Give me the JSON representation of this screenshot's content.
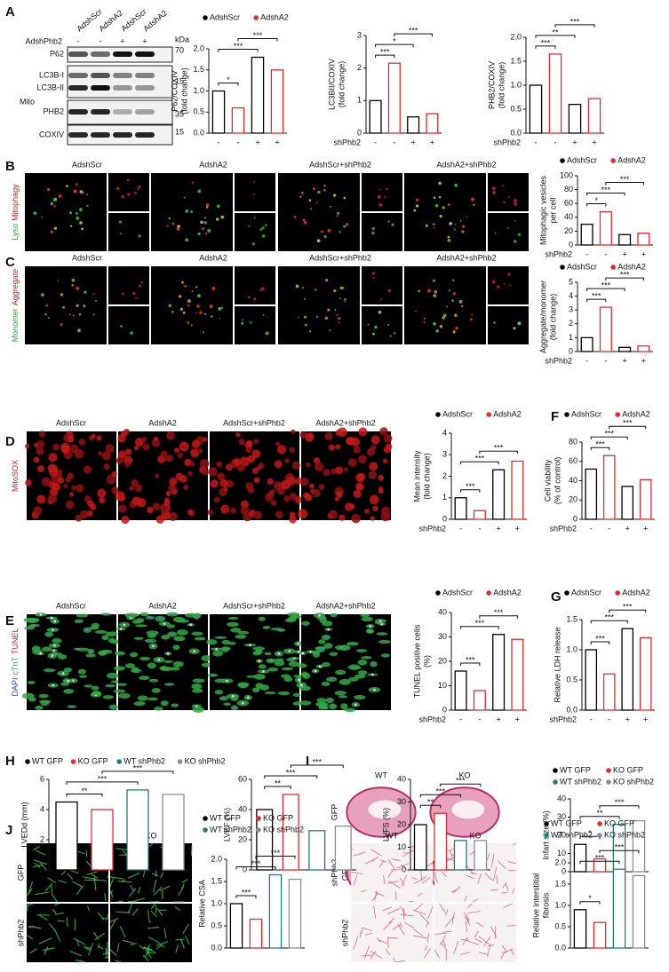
{
  "figure": {
    "letters": [
      "A",
      "B",
      "C",
      "D",
      "E",
      "F",
      "G",
      "H",
      "I",
      "J",
      "K"
    ],
    "blot": {
      "lanes": [
        "AdshScr",
        "AdshA2",
        "AdshScr",
        "AdshA2"
      ],
      "row": "AdshPhb2",
      "signs": [
        "-",
        "-",
        "+",
        "+"
      ],
      "unit": "kDa",
      "bands": [
        "P62",
        "LC3B-I",
        "LC3B-II",
        "PHB2",
        "COXIV"
      ],
      "fraction": "Mito",
      "markers": [
        70,
        15,
        35,
        15
      ]
    },
    "columns": [
      "AdshScr",
      "AdshA2",
      "AdshScr+shPhb2",
      "AdshA2+shPhb2"
    ],
    "B_channels": [
      "Lyso",
      "Mitophagy"
    ],
    "C_channels": [
      "Monomer",
      "Aggregate"
    ],
    "D_channels": [
      "MitoSOX"
    ],
    "E_channels": [
      "DAPI",
      "cTnT",
      "TUNEL"
    ],
    "tissue": {
      "columns": [
        "WT",
        "KO"
      ],
      "rows": [
        "GFP",
        "shPhb2"
      ]
    }
  },
  "chart_data": [
    {
      "type": "bar",
      "ylabel": [
        "P62/COXIV",
        "(fold change)"
      ],
      "categories": [
        "-",
        "-",
        "+",
        "+"
      ],
      "values": [
        1.0,
        0.6,
        1.8,
        1.5
      ],
      "legend": [
        {
          "name": "AdshScr",
          "color": "#000000"
        },
        {
          "name": "AdshA2",
          "color": "#e8282b"
        }
      ],
      "ylim": [
        0,
        2
      ],
      "yticks": [
        {
          "value": 0,
          "label": "0.0"
        },
        {
          "value": 0.5,
          "label": "0.5"
        },
        {
          "value": 1,
          "label": "1.0"
        },
        {
          "value": 1.5,
          "label": "1.5"
        },
        {
          "value": 2,
          "label": "2.0"
        }
      ],
      "annotations": [
        "*",
        "***",
        "***"
      ]
    },
    {
      "type": "bar",
      "ylabel": [
        "LC3BII/COXIV",
        "(fold change)"
      ],
      "xlabel": "shPhb2",
      "categories": [
        "-",
        "-",
        "+",
        "+"
      ],
      "values": [
        1.0,
        2.15,
        0.5,
        0.6
      ],
      "legend": [
        {
          "name": "AdshScr",
          "color": "#000000"
        },
        {
          "name": "AdshA2",
          "color": "#e8282b"
        }
      ],
      "ylim": [
        0,
        3
      ],
      "yticks": [
        0,
        1,
        2,
        3
      ],
      "annotations": [
        "***",
        "*",
        "***"
      ]
    },
    {
      "type": "bar",
      "ylabel": [
        "PHB2/COXIV",
        "(fold change)"
      ],
      "xlabel": "shPhb2",
      "categories": [
        "-",
        "-",
        "+",
        "+"
      ],
      "values": [
        1.0,
        1.65,
        0.6,
        0.72
      ],
      "legend": [
        {
          "name": "AdshScr",
          "color": "#000000"
        },
        {
          "name": "AdshA2",
          "color": "#e8282b"
        }
      ],
      "ylim": [
        0,
        2
      ],
      "yticks": [
        {
          "value": 0,
          "label": "0.0"
        },
        {
          "value": 0.5,
          "label": "0.5"
        },
        {
          "value": 1,
          "label": "1.0"
        },
        {
          "value": 1.5,
          "label": "1.5"
        },
        {
          "value": 2,
          "label": "2.0"
        }
      ],
      "annotations": [
        "***",
        "**",
        "***"
      ]
    },
    {
      "type": "bar",
      "ylabel": [
        "Mitophagic vesicles",
        "per cell"
      ],
      "xlabel": "shPhb2",
      "categories": [
        "-",
        "-",
        "+",
        "+"
      ],
      "values": [
        30,
        48,
        15,
        17
      ],
      "legend": [
        {
          "name": "AdshScr",
          "color": "#000000"
        },
        {
          "name": "AdshA2",
          "color": "#e8282b"
        }
      ],
      "ylim": [
        0,
        100
      ],
      "yticks": [
        0,
        20,
        40,
        60,
        80,
        100
      ],
      "annotations": [
        "*",
        "***",
        "***"
      ]
    },
    {
      "type": "bar",
      "ylabel": [
        "Aggregate/monomer",
        "(fold change)"
      ],
      "xlabel": "shPhb2",
      "categories": [
        "-",
        "-",
        "+",
        "+"
      ],
      "values": [
        1.0,
        3.2,
        0.3,
        0.4
      ],
      "legend": [
        {
          "name": "AdshScr",
          "color": "#000000"
        },
        {
          "name": "AdshA2",
          "color": "#e8282b"
        }
      ],
      "ylim": [
        0,
        5
      ],
      "yticks": [
        0,
        1,
        2,
        3,
        4,
        5
      ],
      "annotations": [
        "***",
        "***",
        "***"
      ]
    },
    {
      "type": "bar",
      "ylabel": [
        "Mean intensity",
        "(fold change)"
      ],
      "xlabel": "shPhb2",
      "categories": [
        "-",
        "-",
        "+",
        "+"
      ],
      "values": [
        1.0,
        0.4,
        2.3,
        2.7
      ],
      "legend": [
        {
          "name": "AdshScr",
          "color": "#000000"
        },
        {
          "name": "AdshA2",
          "color": "#e8282b"
        }
      ],
      "ylim": [
        0,
        4
      ],
      "yticks": [
        0,
        1,
        2,
        3,
        4
      ],
      "annotations": [
        "***",
        "***",
        "***"
      ]
    },
    {
      "type": "bar",
      "ylabel": [
        "Cell viability",
        "(% of control)"
      ],
      "xlabel": "shPhb2",
      "categories": [
        "-",
        "-",
        "+",
        "+"
      ],
      "values": [
        52,
        66,
        34,
        41
      ],
      "legend": [
        {
          "name": "AdshScr",
          "color": "#000000"
        },
        {
          "name": "AdshA2",
          "color": "#e8282b"
        }
      ],
      "ylim": [
        0,
        80
      ],
      "yticks": [
        0,
        20,
        40,
        60,
        80
      ],
      "annotations": [
        "***",
        "***",
        "***"
      ]
    },
    {
      "type": "bar",
      "ylabel": [
        "TUNEL positive cells",
        "(%)"
      ],
      "xlabel": "shPhb2",
      "categories": [
        "-",
        "-",
        "+",
        "+"
      ],
      "values": [
        16,
        8,
        31,
        29
      ],
      "legend": [
        {
          "name": "AdshScr",
          "color": "#000000"
        },
        {
          "name": "AdshA2",
          "color": "#e8282b"
        }
      ],
      "ylim": [
        0,
        40
      ],
      "yticks": [
        0,
        10,
        20,
        30,
        40
      ],
      "annotations": [
        "***",
        "***",
        "***"
      ]
    },
    {
      "type": "bar",
      "ylabel": [
        "Relative LDH release"
      ],
      "xlabel": "shPhb2",
      "categories": [
        "-",
        "-",
        "+",
        "+"
      ],
      "values": [
        1.0,
        0.6,
        1.35,
        1.2
      ],
      "legend": [
        {
          "name": "AdshScr",
          "color": "#000000"
        },
        {
          "name": "AdshA2",
          "color": "#e8282b"
        }
      ],
      "ylim": [
        0,
        1.5
      ],
      "yticks": [
        {
          "value": 0,
          "label": "0.0"
        },
        {
          "value": 0.5,
          "label": "0.5"
        },
        {
          "value": 1,
          "label": "1.0"
        },
        {
          "value": 1.5,
          "label": "1.5"
        }
      ],
      "annotations": [
        "***",
        "***",
        "***"
      ]
    },
    {
      "type": "bar",
      "ylabel": [
        "LVEDd (mm)"
      ],
      "values": [
        4.5,
        4.0,
        5.3,
        5.0
      ],
      "legend": [
        {
          "name": "WT GFP",
          "color": "#000000"
        },
        {
          "name": "KO GFP",
          "color": "#e8282b"
        },
        {
          "name": "WT shPhb2",
          "color": "#1c7c84"
        },
        {
          "name": "KO shPhb2",
          "color": "#8c8c8c"
        }
      ],
      "ylim": [
        0,
        6
      ],
      "yticks": [
        0,
        2,
        4,
        6
      ],
      "annotations": [
        "**",
        "***",
        "***"
      ]
    },
    {
      "type": "bar",
      "ylabel": [
        "LVEF (%)"
      ],
      "values": [
        40,
        50,
        26,
        29
      ],
      "legend": [
        {
          "name": "WT GFP",
          "color": "#000000"
        },
        {
          "name": "KO GFP",
          "color": "#e8282b"
        },
        {
          "name": "WT shPhb2",
          "color": "#1c7c84"
        },
        {
          "name": "KO shPhb2",
          "color": "#8c8c8c"
        }
      ],
      "ylim": [
        0,
        60
      ],
      "yticks": [
        0,
        20,
        40,
        60
      ],
      "annotations": [
        "**",
        "***",
        "***"
      ]
    },
    {
      "type": "bar",
      "ylabel": [
        "LVFS (%)"
      ],
      "values": [
        20,
        25,
        13,
        13
      ],
      "legend": [
        {
          "name": "WT GFP",
          "color": "#000000"
        },
        {
          "name": "KO GFP",
          "color": "#e8282b"
        },
        {
          "name": "WT shPhb2",
          "color": "#1c7c84"
        },
        {
          "name": "KO shPhb2",
          "color": "#8c8c8c"
        }
      ],
      "ylim": [
        0,
        40
      ],
      "yticks": [
        0,
        10,
        20,
        30,
        40
      ],
      "annotations": [
        "**",
        "***",
        "***"
      ]
    },
    {
      "type": "bar",
      "ylabel": [
        "Infart size (%)"
      ],
      "values": [
        15,
        7,
        26,
        28
      ],
      "legend": [
        {
          "name": "WT GFP",
          "color": "#000000"
        },
        {
          "name": "KO GFP",
          "color": "#e8282b"
        },
        {
          "name": "WT shPhb2",
          "color": "#1c7c84"
        },
        {
          "name": "KO shPhb2",
          "color": "#8c8c8c"
        }
      ],
      "ylim": [
        0,
        40
      ],
      "yticks": [
        0,
        10,
        20,
        30,
        40
      ],
      "annotations": [
        "*",
        "**",
        "***"
      ]
    },
    {
      "type": "bar",
      "ylabel": [
        "Relative CSA"
      ],
      "values": [
        1.0,
        0.65,
        1.65,
        1.55
      ],
      "legend": [
        {
          "name": "WT GFP",
          "color": "#000000"
        },
        {
          "name": "KO GFP",
          "color": "#e8282b"
        },
        {
          "name": "WT shPhb2",
          "color": "#1c7c84"
        },
        {
          "name": "KO shPhb2",
          "color": "#8c8c8c"
        }
      ],
      "ylim": [
        0,
        2
      ],
      "yticks": [
        {
          "value": 0,
          "label": "0.0"
        },
        {
          "value": 0.5,
          "label": "0.5"
        },
        {
          "value": 1,
          "label": "1.0"
        },
        {
          "value": 1.5,
          "label": "1.5"
        },
        {
          "value": 2,
          "label": "2.0"
        }
      ],
      "annotations": [
        "***",
        "***",
        "***"
      ]
    },
    {
      "type": "bar",
      "ylabel": [
        "Relative interstitial",
        "fibrosis"
      ],
      "values": [
        0.9,
        0.6,
        1.85,
        1.7
      ],
      "legend": [
        {
          "name": "WT GFP",
          "color": "#000000"
        },
        {
          "name": "KO GFP",
          "color": "#e8282b"
        },
        {
          "name": "WT shPhb2",
          "color": "#1c7c84"
        },
        {
          "name": "KO shPhb2",
          "color": "#8c8c8c"
        }
      ],
      "ylim": [
        0,
        2
      ],
      "yticks": [
        {
          "value": 0,
          "label": "0.0"
        },
        {
          "value": 0.5,
          "label": "0.5"
        },
        {
          "value": 1,
          "label": "1.0"
        },
        {
          "value": 1.5,
          "label": "1.5"
        },
        {
          "value": 2,
          "label": "2.0"
        }
      ],
      "annotations": [
        "*",
        "***",
        "***"
      ]
    }
  ]
}
